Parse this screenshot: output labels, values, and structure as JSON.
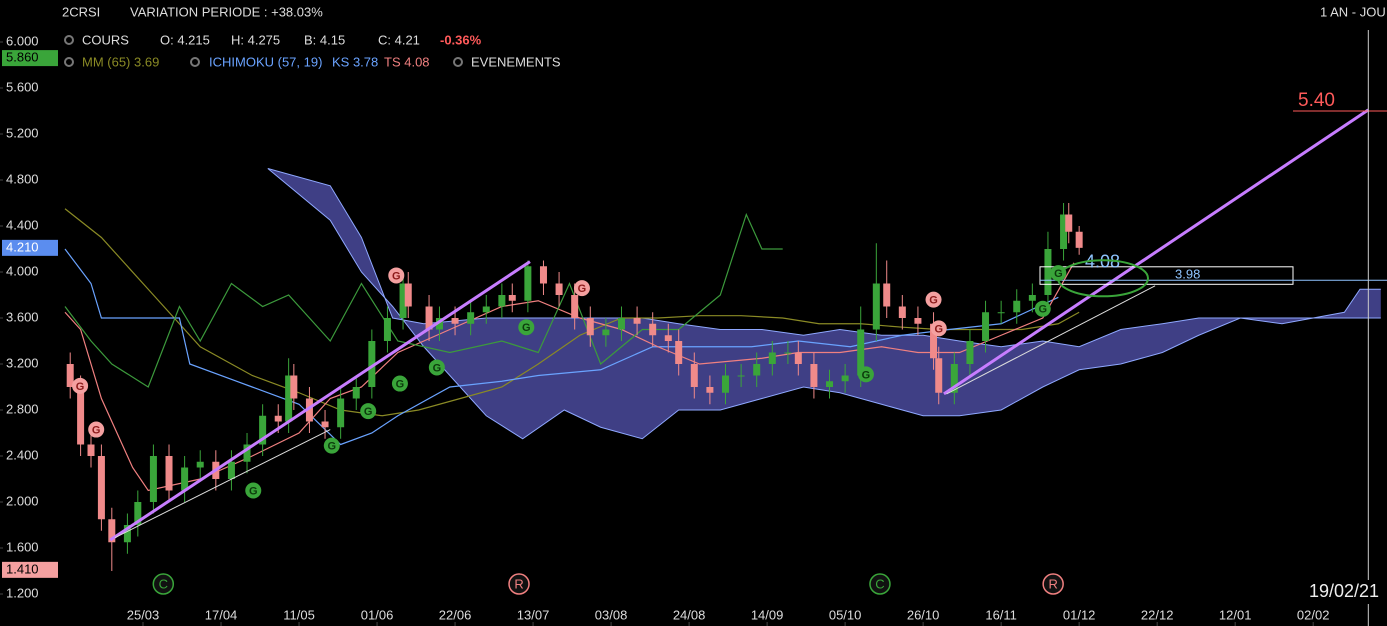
{
  "header": {
    "symbol": "2CRSI",
    "variation": "VARIATION PERIODE : +38.03%",
    "period": "1 AN - JOU"
  },
  "legend": {
    "cours": "COURS",
    "open": "O: 4.215",
    "high": "H: 4.275",
    "low": "B: 4.15",
    "close": "C: 4.21",
    "change": "-0.36%",
    "mm": "MM (65) 3.69",
    "ichimoku": "ICHIMOKU (57, 19)",
    "ks": "KS 3.78",
    "ts": "TS 4.08",
    "events": "EVENEMENTS"
  },
  "chart_data": {
    "type": "candlestick",
    "x": [
      1,
      3,
      5,
      7,
      9,
      12,
      14,
      17,
      20,
      23,
      26,
      29,
      32,
      35,
      38,
      41,
      43,
      44,
      47,
      50,
      53,
      56,
      59,
      62,
      65,
      66,
      70,
      72,
      75,
      78,
      81,
      84,
      86,
      89,
      92,
      95,
      98,
      101,
      104,
      107,
      110,
      113,
      116,
      118,
      121,
      124,
      127,
      130,
      133,
      136,
      139,
      141,
      144,
      147,
      150,
      153,
      156,
      158,
      161,
      164,
      167,
      168,
      171,
      174,
      177,
      180,
      183,
      186,
      189,
      192,
      193,
      195
    ],
    "open": [
      3.2,
      3.0,
      2.5,
      2.4,
      1.85,
      1.65,
      1.8,
      2.0,
      2.4,
      2.1,
      2.3,
      2.35,
      2.2,
      2.35,
      2.5,
      2.75,
      2.7,
      3.1,
      2.9,
      2.7,
      2.65,
      2.9,
      3.0,
      3.4,
      3.6,
      3.9,
      3.7,
      3.5,
      3.6,
      3.55,
      3.65,
      3.7,
      3.8,
      3.75,
      4.05,
      3.9,
      3.8,
      3.6,
      3.45,
      3.5,
      3.6,
      3.55,
      3.45,
      3.4,
      3.2,
      3.0,
      2.95,
      3.1,
      3.1,
      3.2,
      3.3,
      3.3,
      3.2,
      3.0,
      3.05,
      3.1,
      3.5,
      3.9,
      3.7,
      3.6,
      3.55,
      3.25,
      2.95,
      3.2,
      3.4,
      3.65,
      3.65,
      3.75,
      3.8,
      4.2,
      4.5,
      4.35
    ],
    "high": [
      3.3,
      3.1,
      2.6,
      2.5,
      1.95,
      1.9,
      2.1,
      2.5,
      2.5,
      2.4,
      2.45,
      2.45,
      2.45,
      2.6,
      2.85,
      2.85,
      3.25,
      3.2,
      3.0,
      2.8,
      3.0,
      3.1,
      3.5,
      3.7,
      4.0,
      4.0,
      3.8,
      3.7,
      3.7,
      3.75,
      3.8,
      3.9,
      3.9,
      4.1,
      4.1,
      4.0,
      3.9,
      3.7,
      3.6,
      3.7,
      3.7,
      3.65,
      3.55,
      3.5,
      3.3,
      3.1,
      3.2,
      3.2,
      3.3,
      3.4,
      3.4,
      3.4,
      3.3,
      3.15,
      3.2,
      3.7,
      4.25,
      4.1,
      3.8,
      3.7,
      3.65,
      3.35,
      3.3,
      3.5,
      3.75,
      3.75,
      3.85,
      3.9,
      4.35,
      4.6,
      4.6,
      4.4
    ],
    "low": [
      2.9,
      2.4,
      2.3,
      1.75,
      1.4,
      1.55,
      1.7,
      1.9,
      2.0,
      2.0,
      2.2,
      2.1,
      2.1,
      2.25,
      2.4,
      2.6,
      2.6,
      2.8,
      2.6,
      2.55,
      2.55,
      2.8,
      2.9,
      3.3,
      3.5,
      3.6,
      3.4,
      3.4,
      3.45,
      3.45,
      3.55,
      3.6,
      3.65,
      3.65,
      3.8,
      3.7,
      3.5,
      3.35,
      3.35,
      3.4,
      3.45,
      3.35,
      3.3,
      3.1,
      2.9,
      2.85,
      2.85,
      3.0,
      3.0,
      3.1,
      3.2,
      3.1,
      2.9,
      2.9,
      2.95,
      3.0,
      3.4,
      3.6,
      3.5,
      3.45,
      3.15,
      2.85,
      2.85,
      3.1,
      3.3,
      3.55,
      3.55,
      3.65,
      3.7,
      4.1,
      4.25,
      4.15
    ],
    "close": [
      3.0,
      2.5,
      2.4,
      1.85,
      1.65,
      1.8,
      2.0,
      2.4,
      2.1,
      2.3,
      2.35,
      2.2,
      2.35,
      2.5,
      2.75,
      2.7,
      3.1,
      2.9,
      2.7,
      2.65,
      2.9,
      3.0,
      3.4,
      3.6,
      3.9,
      3.7,
      3.5,
      3.6,
      3.55,
      3.65,
      3.7,
      3.8,
      3.75,
      4.05,
      3.9,
      3.8,
      3.6,
      3.45,
      3.5,
      3.6,
      3.55,
      3.45,
      3.4,
      3.2,
      3.0,
      2.95,
      3.1,
      3.1,
      3.2,
      3.3,
      3.3,
      3.2,
      3.0,
      3.05,
      3.1,
      3.5,
      3.9,
      3.7,
      3.6,
      3.55,
      3.25,
      2.95,
      3.2,
      3.4,
      3.65,
      3.65,
      3.75,
      3.8,
      4.2,
      4.5,
      4.35,
      4.21
    ],
    "up_color": "#3aa53a",
    "down_color": "#f08a8a",
    "xlim": [
      0,
      254
    ],
    "xticks": [
      {
        "value": 15,
        "label": "25/03"
      },
      {
        "value": 30,
        "label": "17/04"
      },
      {
        "value": 45,
        "label": "11/05"
      },
      {
        "value": 60,
        "label": "01/06"
      },
      {
        "value": 75,
        "label": "22/06"
      },
      {
        "value": 90,
        "label": "13/07"
      },
      {
        "value": 105,
        "label": "03/08"
      },
      {
        "value": 120,
        "label": "24/08"
      },
      {
        "value": 135,
        "label": "14/09"
      },
      {
        "value": 150,
        "label": "05/10"
      },
      {
        "value": 165,
        "label": "26/10"
      },
      {
        "value": 180,
        "label": "16/11"
      },
      {
        "value": 195,
        "label": "01/12"
      },
      {
        "value": 210,
        "label": "22/12"
      },
      {
        "value": 225,
        "label": "12/01"
      },
      {
        "value": 240,
        "label": "02/02"
      }
    ],
    "ylim": [
      1.2,
      6.0
    ],
    "yticks": [
      {
        "value": 1.2,
        "label": "1.200"
      },
      {
        "value": 1.6,
        "label": "1.600"
      },
      {
        "value": 2.0,
        "label": "2.000"
      },
      {
        "value": 2.4,
        "label": "2.400"
      },
      {
        "value": 2.8,
        "label": "2.800"
      },
      {
        "value": 3.2,
        "label": "3.200"
      },
      {
        "value": 3.6,
        "label": "3.600"
      },
      {
        "value": 4.0,
        "label": "4.000"
      },
      {
        "value": 4.4,
        "label": "4.400"
      },
      {
        "value": 4.8,
        "label": "4.800"
      },
      {
        "value": 5.2,
        "label": "5.200"
      },
      {
        "value": 5.6,
        "label": "5.600"
      },
      {
        "value": 6.0,
        "label": "6.000"
      }
    ],
    "price_markers": [
      {
        "value": 5.86,
        "label": "5.860",
        "color": "#3aa53a"
      },
      {
        "value": 4.21,
        "label": "4.210",
        "color": "#5b8def"
      },
      {
        "value": 1.41,
        "label": "1.410",
        "color": "#f4a0a0"
      }
    ],
    "cloud": {
      "color": "#4a4a9c",
      "edge": "#8fa8ff",
      "x": [
        39,
        51,
        57,
        63,
        69,
        81,
        88,
        96,
        103,
        111,
        118,
        126,
        134,
        142,
        149,
        157,
        165,
        172,
        180,
        188,
        195,
        203,
        211,
        218,
        226,
        234,
        246,
        249,
        253
      ],
      "span_a": [
        4.9,
        4.75,
        4.3,
        3.6,
        3.55,
        3.6,
        3.6,
        3.6,
        3.6,
        3.6,
        3.55,
        3.5,
        3.5,
        3.45,
        3.5,
        3.45,
        3.45,
        3.4,
        3.35,
        3.4,
        3.35,
        3.5,
        3.55,
        3.6,
        3.6,
        3.6,
        3.6,
        3.6,
        3.6
      ],
      "span_b": [
        4.9,
        4.45,
        4.0,
        3.7,
        3.35,
        2.75,
        2.55,
        2.8,
        2.65,
        2.55,
        2.8,
        2.8,
        2.9,
        3.0,
        2.95,
        2.85,
        2.75,
        2.75,
        2.8,
        3.0,
        3.15,
        3.2,
        3.3,
        3.45,
        3.6,
        3.55,
        3.65,
        3.85,
        3.85
      ]
    },
    "lines": [
      {
        "color": "#8a8a25",
        "x": [
          0,
          7,
          16,
          26,
          36,
          45,
          53,
          61,
          68,
          76,
          84,
          91,
          99,
          107,
          114,
          122,
          130,
          138,
          145,
          153,
          161,
          168,
          176,
          184,
          191,
          195
        ],
        "values": [
          4.55,
          4.3,
          3.85,
          3.35,
          3.1,
          2.95,
          2.8,
          2.75,
          2.8,
          2.9,
          3.0,
          3.2,
          3.45,
          3.6,
          3.6,
          3.62,
          3.62,
          3.6,
          3.55,
          3.55,
          3.52,
          3.5,
          3.5,
          3.5,
          3.55,
          3.65
        ]
      },
      {
        "color": "#6aa3ff",
        "x": [
          0,
          5,
          7,
          22,
          24,
          36,
          45,
          53,
          59,
          64,
          74,
          84,
          91,
          103,
          113,
          122,
          132,
          141,
          151,
          161,
          170,
          180,
          191
        ],
        "values": [
          4.2,
          3.9,
          3.6,
          3.6,
          3.2,
          3.0,
          2.85,
          2.5,
          2.6,
          2.75,
          3.0,
          3.05,
          3.1,
          3.15,
          3.35,
          3.35,
          3.35,
          3.4,
          3.35,
          3.45,
          3.5,
          3.55,
          3.78
        ]
      },
      {
        "color": "#f08080",
        "x": [
          0,
          3,
          7,
          13,
          16,
          26,
          36,
          45,
          51,
          57,
          64,
          74,
          84,
          91,
          99,
          107,
          114,
          122,
          134,
          141,
          149,
          157,
          164,
          172,
          180,
          188,
          194
        ],
        "values": [
          3.65,
          3.5,
          2.9,
          2.3,
          2.1,
          2.2,
          2.4,
          2.6,
          2.9,
          3.0,
          3.3,
          3.5,
          3.7,
          3.75,
          3.6,
          3.5,
          3.35,
          3.2,
          3.25,
          3.3,
          3.3,
          3.35,
          3.3,
          3.3,
          3.45,
          3.6,
          4.08
        ]
      },
      {
        "color": "#3c9a3c",
        "x": [
          0,
          5,
          9,
          16,
          22,
          26,
          32,
          38,
          43,
          51,
          57,
          64,
          74,
          84,
          91,
          97,
          103,
          111,
          118,
          126,
          131,
          134,
          138
        ],
        "values": [
          3.7,
          3.4,
          3.2,
          3.0,
          3.7,
          3.4,
          3.9,
          3.7,
          3.8,
          3.4,
          3.9,
          3.4,
          3.3,
          3.4,
          3.3,
          3.9,
          3.2,
          3.5,
          3.5,
          3.8,
          4.5,
          4.2,
          4.2
        ]
      }
    ],
    "trendlines": [
      {
        "color": "#c77dff",
        "x": [
          8.7,
          89.4
        ],
        "values": [
          1.67,
          4.09
        ]
      },
      {
        "color": "#c77dff",
        "x": [
          169,
          250.6
        ],
        "values": [
          2.94,
          5.41
        ]
      },
      {
        "color": "#dddddd",
        "x": [
          9.6,
          51
        ],
        "values": [
          1.69,
          2.63
        ]
      },
      {
        "color": "#dddddd",
        "x": [
          169.5,
          209.6
        ],
        "values": [
          2.94,
          3.88
        ]
      }
    ],
    "events": [
      {
        "label": "G",
        "x": 2.9,
        "price": 3.01,
        "color": "#f4a0a0"
      },
      {
        "label": "G",
        "x": 6,
        "price": 2.63,
        "color": "#f4a0a0"
      },
      {
        "label": "G",
        "x": 63.7,
        "price": 3.97,
        "color": "#f4a0a0"
      },
      {
        "label": "G",
        "x": 99.4,
        "price": 3.86,
        "color": "#f4a0a0"
      },
      {
        "label": "G",
        "x": 167,
        "price": 3.76,
        "color": "#f4a0a0"
      },
      {
        "label": "G",
        "x": 168,
        "price": 3.51,
        "color": "#f4a0a0"
      },
      {
        "label": "G",
        "x": 36.2,
        "price": 2.1,
        "color": "#3aa53a"
      },
      {
        "label": "G",
        "x": 51.3,
        "price": 2.49,
        "color": "#3aa53a"
      },
      {
        "label": "G",
        "x": 58.3,
        "price": 2.79,
        "color": "#3aa53a"
      },
      {
        "label": "G",
        "x": 64.4,
        "price": 3.03,
        "color": "#3aa53a"
      },
      {
        "label": "G",
        "x": 71.5,
        "price": 3.17,
        "color": "#3aa53a"
      },
      {
        "label": "G",
        "x": 88.7,
        "price": 3.52,
        "color": "#3aa53a"
      },
      {
        "label": "G",
        "x": 154,
        "price": 3.11,
        "color": "#3aa53a"
      },
      {
        "label": "G",
        "x": 188,
        "price": 3.68,
        "color": "#3aa53a"
      },
      {
        "label": "G",
        "x": 191,
        "price": 3.99,
        "color": "#3aa53a"
      }
    ],
    "period_events": [
      {
        "label": "C",
        "x": 18.9,
        "color": "#3aa53a"
      },
      {
        "label": "R",
        "x": 87.3,
        "color": "#f08080"
      },
      {
        "label": "C",
        "x": 156.7,
        "color": "#3aa53a"
      },
      {
        "label": "R",
        "x": 190,
        "color": "#f08080"
      }
    ],
    "levels": [
      {
        "value": 5.4,
        "label": "5.40",
        "color": "#ff5a5a"
      },
      {
        "value": 4.08,
        "label": "4.08",
        "color": "#8fc4ff"
      },
      {
        "value": 3.98,
        "label": "3.98",
        "color": "#8fc4ff"
      }
    ],
    "current": {
      "value": 250.6,
      "label": "19/02/21"
    }
  }
}
